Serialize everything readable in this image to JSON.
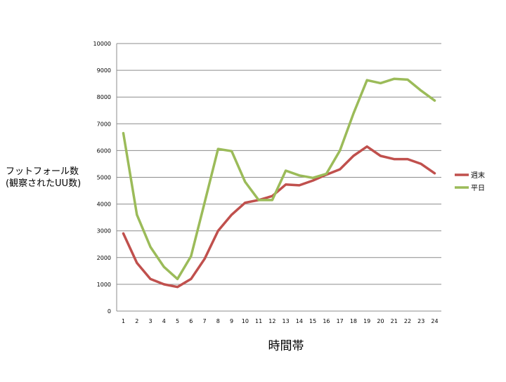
{
  "chart_data": {
    "type": "line",
    "title": "",
    "xlabel": "時間帯",
    "ylabel_lines": [
      "フットフォール数",
      "(観察されたUU数)"
    ],
    "x": [
      1,
      2,
      3,
      4,
      5,
      6,
      7,
      8,
      9,
      10,
      11,
      12,
      13,
      14,
      15,
      16,
      17,
      18,
      19,
      20,
      21,
      22,
      23,
      24
    ],
    "ylim": [
      0,
      10000
    ],
    "yticks": [
      0,
      1000,
      2000,
      3000,
      4000,
      5000,
      6000,
      7000,
      8000,
      9000,
      10000
    ],
    "grid": true,
    "legend_position": "right",
    "series": [
      {
        "name": "週末",
        "color": "#c0504d",
        "values": [
          2900,
          1800,
          1200,
          1000,
          900,
          1200,
          1950,
          3000,
          3600,
          4050,
          4150,
          4300,
          4730,
          4700,
          4880,
          5100,
          5300,
          5800,
          6150,
          5800,
          5680,
          5680,
          5500,
          5150
        ]
      },
      {
        "name": "平日",
        "color": "#9bbb59",
        "values": [
          6650,
          3600,
          2400,
          1650,
          1200,
          2050,
          4050,
          6060,
          5980,
          4830,
          4150,
          4150,
          5250,
          5070,
          4980,
          5130,
          6000,
          7380,
          8630,
          8520,
          8680,
          8650,
          8240,
          7870
        ]
      }
    ]
  }
}
